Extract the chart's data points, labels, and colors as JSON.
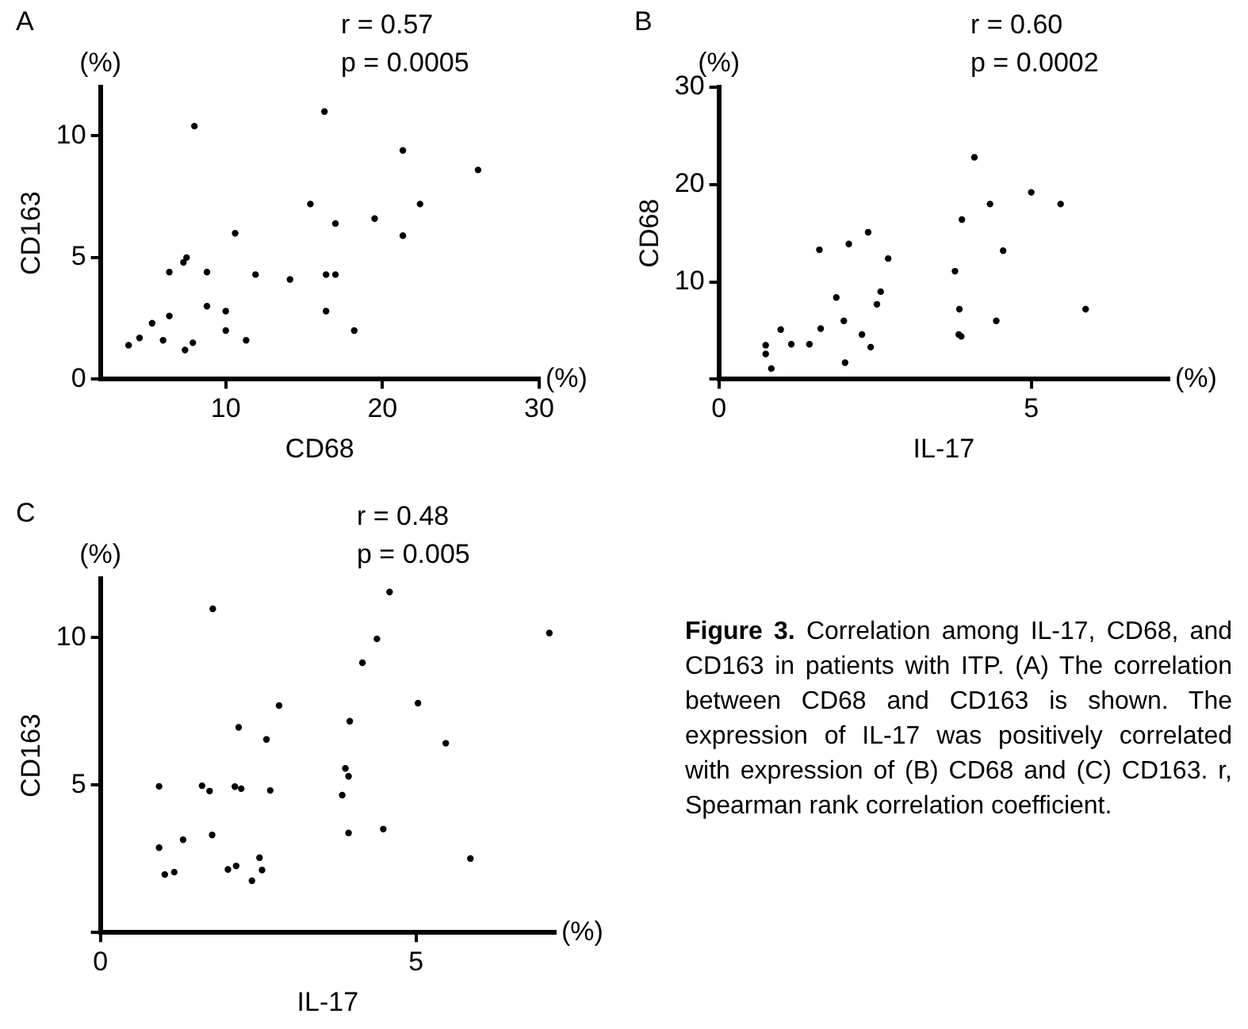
{
  "chart_data": [
    {
      "type": "scatter",
      "title": "A",
      "xlabel": "CD68",
      "ylabel": "CD163",
      "annotations": [
        "(%)",
        "(%)",
        "r = 0.57",
        "p = 0.0005"
      ],
      "xlim": [
        2,
        30
      ],
      "xticks": [
        10,
        20,
        30
      ],
      "ylim": [
        0,
        12
      ],
      "yticks": [
        0,
        5,
        10
      ],
      "grid": false,
      "marker": "circle",
      "series": [
        {
          "color": "#000000",
          "x": [
            3.8,
            4.5,
            5.3,
            6.0,
            6.4,
            6.4,
            7.3,
            7.5,
            7.4,
            7.9,
            8.0,
            8.8,
            8.8,
            10.0,
            10.0,
            10.6,
            11.3,
            11.9,
            14.1,
            15.4,
            16.3,
            16.4,
            16.4,
            17.0,
            17.0,
            18.2,
            19.5,
            21.3,
            21.3,
            22.4,
            26.1
          ],
          "values": [
            1.4,
            1.7,
            2.3,
            1.6,
            2.6,
            4.4,
            4.8,
            5.0,
            1.2,
            1.5,
            10.4,
            4.4,
            3.0,
            2.8,
            2.0,
            6.0,
            1.6,
            4.3,
            4.1,
            7.2,
            11.0,
            4.3,
            2.8,
            6.4,
            4.3,
            2.0,
            6.6,
            9.4,
            5.9,
            7.2,
            8.6
          ]
        }
      ]
    },
    {
      "type": "scatter",
      "title": "B",
      "xlabel": "IL-17",
      "ylabel": "CD68",
      "annotations": [
        "(%)",
        "(%)",
        "r = 0.60",
        "p = 0.0002"
      ],
      "xlim": [
        0,
        7.2
      ],
      "xticks": [
        0,
        5
      ],
      "ylim": [
        0,
        30
      ],
      "yticks": [
        {
          "value": 0,
          "label": null
        },
        10,
        20,
        30
      ],
      "grid": false,
      "marker": "circle",
      "series": [
        {
          "color": "#000000",
          "x": [
            0.75,
            0.75,
            0.84,
            0.99,
            1.16,
            1.45,
            1.61,
            1.63,
            1.88,
            2.0,
            2.02,
            2.08,
            2.29,
            2.39,
            2.43,
            2.53,
            2.59,
            2.71,
            3.78,
            3.85,
            3.84,
            3.88,
            3.89,
            4.09,
            4.34,
            4.44,
            4.55,
            5.0,
            5.47,
            5.87
          ],
          "values": [
            3.5,
            2.6,
            1.1,
            5.1,
            3.6,
            3.6,
            13.3,
            5.2,
            8.4,
            6.0,
            1.7,
            13.9,
            4.6,
            15.1,
            3.3,
            7.7,
            9.0,
            12.4,
            11.1,
            7.2,
            4.6,
            4.4,
            16.4,
            22.8,
            18.0,
            6.0,
            13.2,
            19.2,
            18.0,
            7.2
          ]
        }
      ]
    },
    {
      "type": "scatter",
      "title": "C",
      "xlabel": "IL-17",
      "ylabel": "CD163",
      "annotations": [
        "(%)",
        "(%)",
        "r = 0.48",
        "p = 0.005"
      ],
      "xlim": [
        0,
        7.2
      ],
      "xticks": [
        0,
        5
      ],
      "ylim": [
        0,
        12
      ],
      "yticks": [
        {
          "value": 0,
          "label": null
        },
        5,
        10
      ],
      "grid": false,
      "marker": "circle",
      "series": [
        {
          "color": "#000000",
          "x": [
            0.93,
            0.93,
            1.02,
            1.17,
            1.31,
            1.61,
            1.73,
            1.77,
            1.78,
            2.02,
            2.13,
            2.15,
            2.19,
            2.23,
            2.4,
            2.52,
            2.56,
            2.63,
            2.69,
            2.83,
            3.83,
            3.88,
            3.93,
            3.93,
            3.95,
            4.15,
            4.38,
            4.48,
            4.58,
            5.03,
            5.47,
            5.86,
            7.11
          ],
          "values": [
            4.96,
            2.88,
            1.97,
            2.05,
            3.15,
            4.98,
            4.8,
            3.31,
            10.98,
            2.14,
            4.95,
            2.26,
            6.96,
            4.88,
            1.76,
            2.54,
            2.12,
            6.55,
            4.82,
            7.7,
            4.66,
            5.57,
            5.3,
            3.38,
            7.17,
            9.15,
            9.96,
            3.51,
            11.55,
            7.78,
            6.42,
            2.51,
            10.16
          ]
        }
      ]
    },
    {
      "type": "other",
      "title": "Figure 3.",
      "annotations": [
        "Correlation among IL-17, CD68, and CD163 in patients with ITP. (A) The correlation between CD68 and CD163 is shown. The expression of IL-17 was positively correlated with expression of (B) CD68 and (C) CD163. r, Spearman rank correlation coefficient."
      ]
    }
  ]
}
